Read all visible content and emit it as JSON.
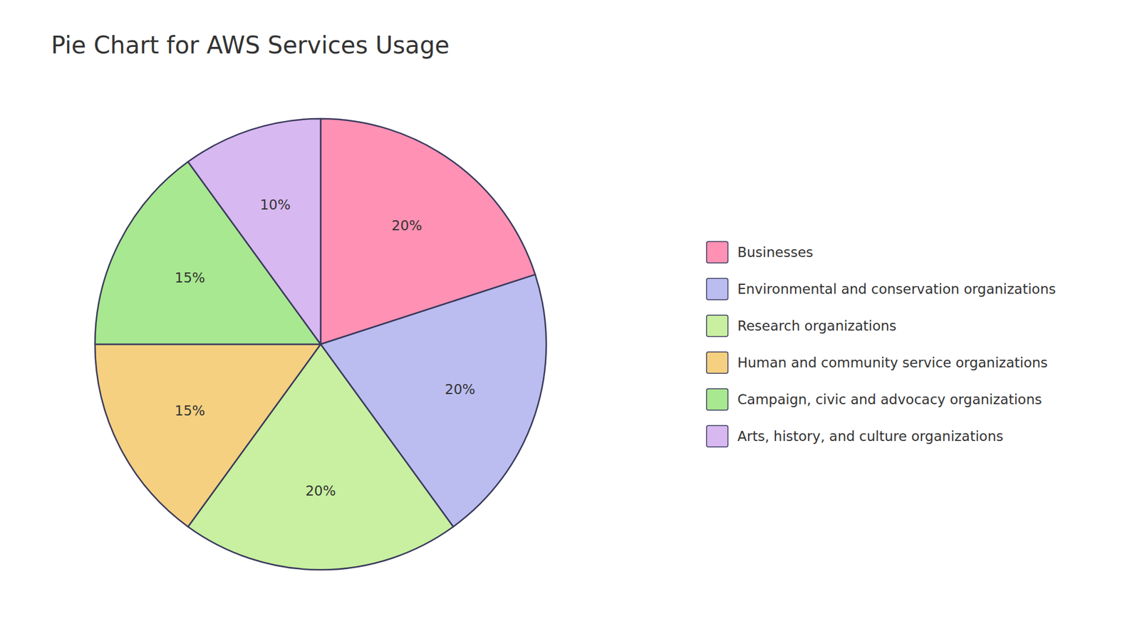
{
  "chart_data": {
    "type": "pie",
    "title": "Pie Chart for AWS Services Usage",
    "categories": [
      "Businesses",
      "Environmental and conservation organizations",
      "Research organizations",
      "Human and community service organizations",
      "Campaign, civic and advocacy organizations",
      "Arts, history, and culture organizations"
    ],
    "values": [
      20,
      20,
      20,
      15,
      15,
      10
    ],
    "value_labels": [
      "20%",
      "20%",
      "20%",
      "15%",
      "15%",
      "10%"
    ],
    "colors": [
      "#FF91B4",
      "#BBBDF0",
      "#C8F0A0",
      "#F5D080",
      "#A8E890",
      "#D8B8F0"
    ],
    "data_labels": true,
    "legend": "right"
  }
}
